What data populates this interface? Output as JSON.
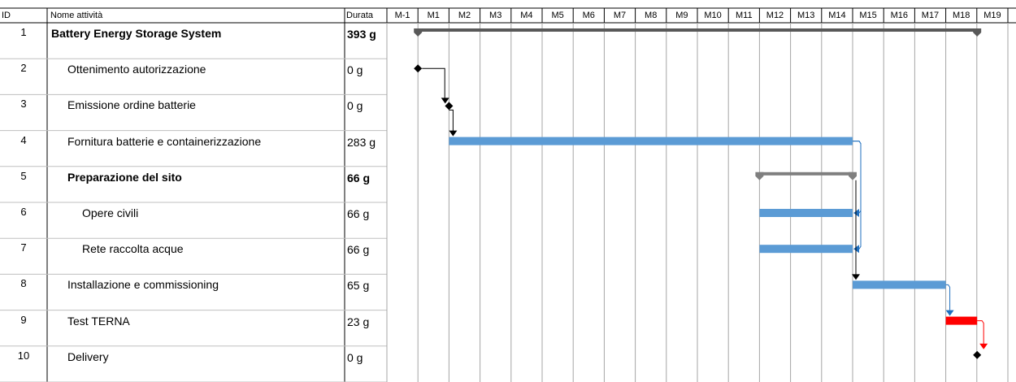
{
  "columns": {
    "id": "ID",
    "name": "Nome attività",
    "duration": "Durata"
  },
  "months": [
    "M-1",
    "M1",
    "M2",
    "M3",
    "M4",
    "M5",
    "M6",
    "M7",
    "M8",
    "M9",
    "M10",
    "M11",
    "M12",
    "M13",
    "M14",
    "M15",
    "M16",
    "M17",
    "M18",
    "M19",
    "M"
  ],
  "tasks": [
    {
      "id": "1",
      "name": "Battery Energy Storage System",
      "duration": "393 g",
      "level": 0,
      "bold": true,
      "kind": "summary",
      "start": 0,
      "end": 18.01,
      "color": "#595959"
    },
    {
      "id": "2",
      "name": "Ottenimento autorizzazione",
      "duration": "0 g",
      "level": 1,
      "bold": false,
      "kind": "milestone",
      "start": 0,
      "end": 0,
      "color": "#000000"
    },
    {
      "id": "3",
      "name": "Emissione ordine batterie",
      "duration": "0 g",
      "level": 1,
      "bold": false,
      "kind": "milestone",
      "start": 1,
      "end": 1,
      "color": "#000000"
    },
    {
      "id": "4",
      "name": "Fornitura batterie e containerizzazione",
      "duration": "283 g",
      "level": 1,
      "bold": false,
      "kind": "task",
      "start": 1,
      "end": 14,
      "color": "#5b9bd5"
    },
    {
      "id": "5",
      "name": "Preparazione del sito",
      "duration": "66 g",
      "level": 1,
      "bold": true,
      "kind": "summary",
      "start": 11,
      "end": 14,
      "color": "#7f7f7f"
    },
    {
      "id": "6",
      "name": "Opere civili",
      "duration": "66 g",
      "level": 2,
      "bold": false,
      "kind": "task",
      "start": 11,
      "end": 14,
      "color": "#5b9bd5"
    },
    {
      "id": "7",
      "name": "Rete raccolta acque",
      "duration": "66 g",
      "level": 2,
      "bold": false,
      "kind": "task",
      "start": 11,
      "end": 14,
      "color": "#5b9bd5"
    },
    {
      "id": "8",
      "name": "Installazione e commissioning",
      "duration": "65 g",
      "level": 1,
      "bold": false,
      "kind": "task",
      "start": 14,
      "end": 17,
      "color": "#5b9bd5"
    },
    {
      "id": "9",
      "name": "Test TERNA",
      "duration": "23 g",
      "level": 1,
      "bold": false,
      "kind": "task",
      "start": 17,
      "end": 18.01,
      "color": "#ff0000"
    },
    {
      "id": "10",
      "name": "Delivery",
      "duration": "0 g",
      "level": 1,
      "bold": false,
      "kind": "milestone",
      "start": 18.01,
      "end": 18.01,
      "color": "#000000"
    }
  ],
  "links": [
    {
      "from": "2",
      "to": "3",
      "color": "#000000"
    },
    {
      "from": "3",
      "to": "4",
      "color": "#000000"
    },
    {
      "from": "4",
      "to": "6",
      "color": "#1f6fbf"
    },
    {
      "from": "4",
      "to": "7",
      "color": "#1f6fbf"
    },
    {
      "from": "5",
      "to": "8",
      "color": "#000000"
    },
    {
      "from": "8",
      "to": "9",
      "color": "#1f6fbf"
    },
    {
      "from": "9",
      "to": "10",
      "color": "#ff0000"
    }
  ]
}
